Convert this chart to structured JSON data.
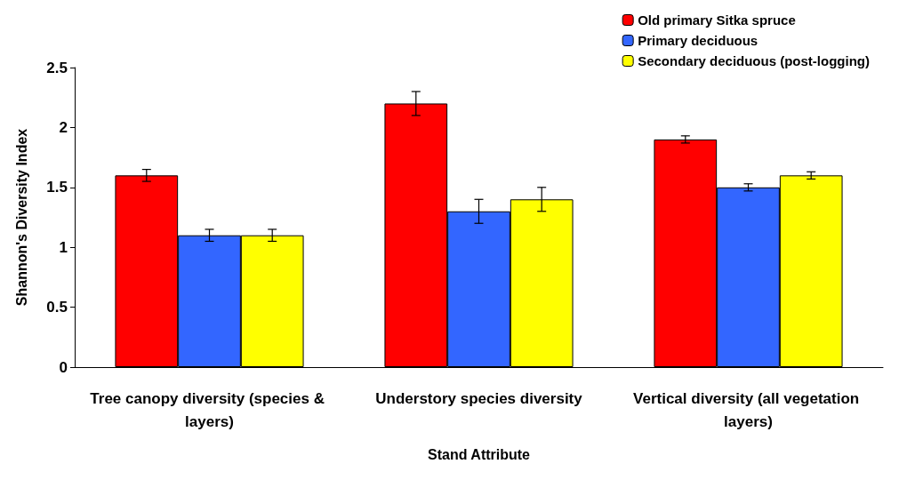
{
  "chart_data": {
    "type": "bar",
    "xlabel": "Stand Attribute",
    "ylabel": "Shannon's Diversity Index",
    "categories": [
      "Tree canopy diversity (species & layers)",
      "Understory species diversity",
      "Vertical diversity (all vegetation layers)"
    ],
    "series": [
      {
        "name": "Old primary Sitka spruce",
        "color": "#ff0000",
        "values": [
          1.6,
          2.2,
          1.9
        ],
        "errors": [
          0.05,
          0.1,
          0.03
        ]
      },
      {
        "name": "Primary deciduous",
        "color": "#3366ff",
        "values": [
          1.1,
          1.3,
          1.5
        ],
        "errors": [
          0.05,
          0.1,
          0.03
        ]
      },
      {
        "name": "Secondary deciduous (post-logging)",
        "color": "#ffff00",
        "values": [
          1.1,
          1.4,
          1.6
        ],
        "errors": [
          0.05,
          0.1,
          0.03
        ]
      }
    ],
    "ylim": [
      0,
      2.5
    ],
    "yticks": [
      0,
      0.5,
      1,
      1.5,
      2,
      2.5
    ],
    "grid": false,
    "legend": "top right"
  }
}
